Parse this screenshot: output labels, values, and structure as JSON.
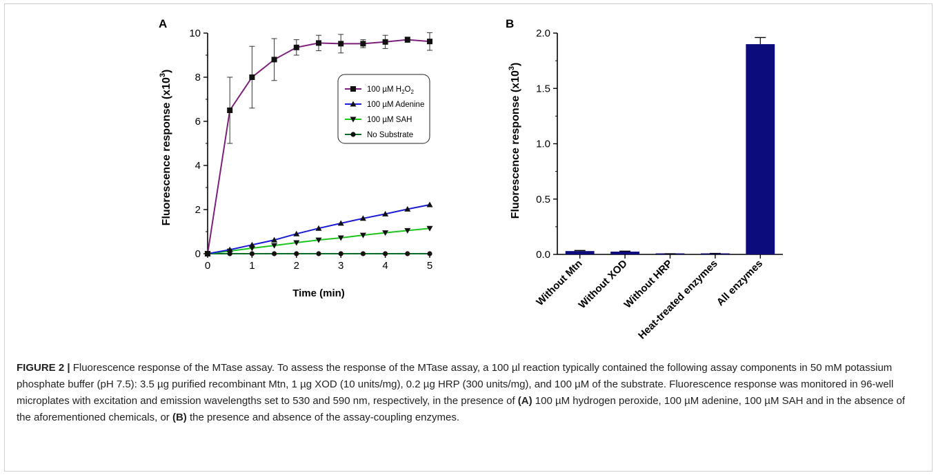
{
  "chart_data": [
    {
      "type": "line",
      "panel_label": "A",
      "xlabel": "Time (min)",
      "ylabel_main": "Fluorescence response (x10",
      "ylabel_exp": "3",
      "ylabel_close": ")",
      "xlim": [
        0,
        5
      ],
      "ylim": [
        0,
        10
      ],
      "xticks": [
        "0",
        "1",
        "2",
        "3",
        "4",
        "5"
      ],
      "yticks": [
        "0",
        "2",
        "4",
        "6",
        "8",
        "10"
      ],
      "legend_position": "upper-right",
      "series": [
        {
          "name": "100 µM H",
          "name_sub": "2",
          "name_mid": "O",
          "name_sub2": "2",
          "marker": "square",
          "color": "#7b1f7b",
          "x": [
            0,
            0.5,
            1,
            1.5,
            2,
            2.5,
            3,
            3.5,
            4,
            4.5,
            5
          ],
          "y": [
            0,
            6.5,
            8.0,
            8.8,
            9.35,
            9.55,
            9.52,
            9.52,
            9.6,
            9.7,
            9.62
          ],
          "err": [
            0,
            1.5,
            1.4,
            0.95,
            0.35,
            0.35,
            0.42,
            0.18,
            0.3,
            0.12,
            0.4
          ]
        },
        {
          "name": "100 µM Adenine",
          "marker": "triangle-up",
          "color": "#1a1ad6",
          "x": [
            0,
            0.5,
            1,
            1.5,
            2,
            2.5,
            3,
            3.5,
            4,
            4.5,
            5
          ],
          "y": [
            0,
            0.18,
            0.4,
            0.62,
            0.9,
            1.15,
            1.38,
            1.6,
            1.8,
            2.02,
            2.22
          ]
        },
        {
          "name": "100 µM SAH",
          "marker": "triangle-down",
          "color": "#1ec41e",
          "x": [
            0,
            0.5,
            1,
            1.5,
            2,
            2.5,
            3,
            3.5,
            4,
            4.5,
            5
          ],
          "y": [
            0,
            0.12,
            0.25,
            0.37,
            0.5,
            0.62,
            0.72,
            0.84,
            0.95,
            1.05,
            1.15
          ]
        },
        {
          "name": "No Substrate",
          "marker": "circle",
          "color": "#0a6a28",
          "x": [
            0,
            0.5,
            1,
            1.5,
            2,
            2.5,
            3,
            3.5,
            4,
            4.5,
            5
          ],
          "y": [
            0,
            0,
            0,
            0,
            0,
            0,
            0,
            0,
            0,
            0,
            0
          ]
        }
      ]
    },
    {
      "type": "bar",
      "panel_label": "B",
      "ylabel_main": "Fluorescence response (x10",
      "ylabel_exp": "3",
      "ylabel_close": ")",
      "ylim": [
        0,
        2.0
      ],
      "yticks": [
        "0.0",
        "0.5",
        "1.0",
        "1.5",
        "2.0"
      ],
      "categories": [
        "Without Mtn",
        "Without XOD",
        "Without HRP",
        "Heat-treated enzymes",
        "All enzymes"
      ],
      "values": [
        0.03,
        0.025,
        0.004,
        0.007,
        1.9
      ],
      "err": [
        0.005,
        0.004,
        0.002,
        0.002,
        0.06
      ],
      "bar_color": "#0c0c7c"
    }
  ],
  "caption": {
    "lead": "FIGURE 2 |",
    "text": " Fluorescence response of the MTase assay. To assess the response of the MTase assay, a 100 µl reaction typically contained the following assay components in 50 mM potassium phosphate buffer (pH 7.5): 3.5 µg purified recombinant Mtn, 1 µg XOD (10 units/mg), 0.2 µg HRP (300 units/mg), and 100 µM of the substrate. Fluorescence response was monitored in 96-well microplates with excitation and emission wavelengths set to 530 and 590 nm, respectively, in the presence of ",
    "a_label": "(A)",
    "a_text": " 100 µM hydrogen peroxide, 100 µM adenine, 100 µM SAH and in the absence of the aforementioned chemicals, or ",
    "b_label": "(B)",
    "b_text": " the presence and absence of the assay-coupling enzymes."
  }
}
